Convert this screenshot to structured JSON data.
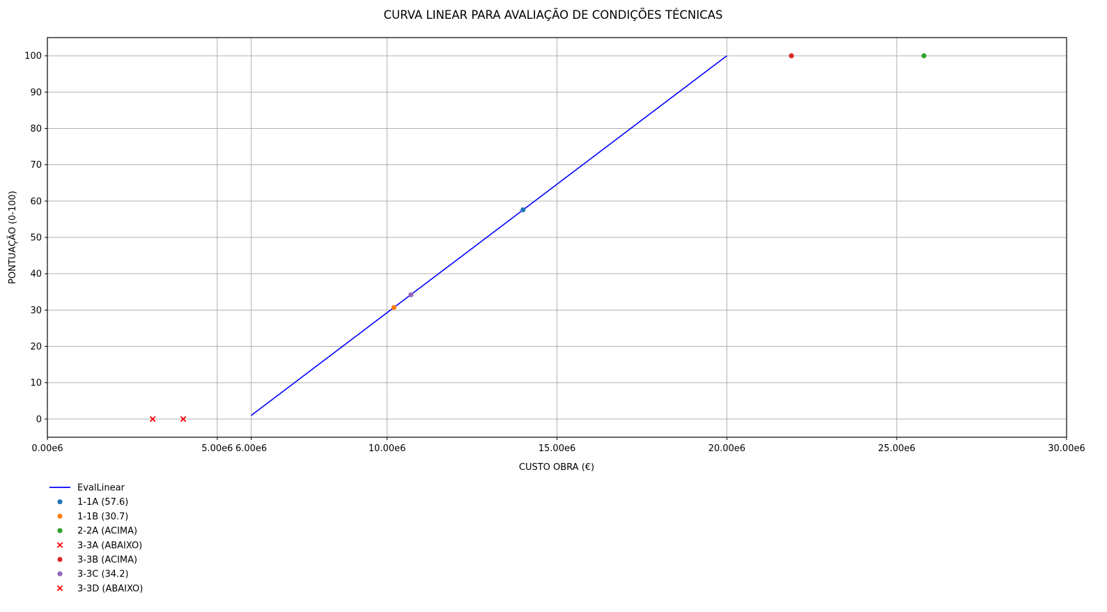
{
  "chart_data": {
    "type": "scatter",
    "title": "CURVA LINEAR PARA AVALIAÇÃO DE CONDIÇÕES TÉCNICAS",
    "xlabel": "CUSTO OBRA (€)",
    "ylabel": "PONTUAÇÃO (0-100)",
    "xlim": [
      0,
      30000000
    ],
    "ylim": [
      -5,
      105
    ],
    "grid": true,
    "legend_position": "below-left",
    "x_ticks": [
      {
        "value": 0,
        "label": "0.00e6",
        "color": "#000000"
      },
      {
        "value": 5000000,
        "label": "5.00e6",
        "color": "#000000"
      },
      {
        "value": 6000000,
        "label": "6.00e6",
        "color": "#ff0000"
      },
      {
        "value": 10000000,
        "label": "10.00e6",
        "color": "#000000"
      },
      {
        "value": 15000000,
        "label": "15.00e6",
        "color": "#000000"
      },
      {
        "value": 20000000,
        "label": "20.00e6",
        "color": "#ff0000"
      },
      {
        "value": 25000000,
        "label": "25.00e6",
        "color": "#000000"
      },
      {
        "value": 30000000,
        "label": "30.00e6",
        "color": "#000000"
      }
    ],
    "y_ticks": [
      {
        "value": 0,
        "label": "0"
      },
      {
        "value": 10,
        "label": "10"
      },
      {
        "value": 20,
        "label": "20"
      },
      {
        "value": 30,
        "label": "30"
      },
      {
        "value": 40,
        "label": "40"
      },
      {
        "value": 50,
        "label": "50"
      },
      {
        "value": 60,
        "label": "60"
      },
      {
        "value": 70,
        "label": "70"
      },
      {
        "value": 80,
        "label": "80"
      },
      {
        "value": 90,
        "label": "90"
      },
      {
        "value": 100,
        "label": "100"
      }
    ],
    "series": [
      {
        "name": "EvalLinear",
        "kind": "line",
        "color": "#0000ff",
        "x": [
          6000000,
          20000000
        ],
        "y": [
          1,
          100
        ]
      },
      {
        "name": "1-1A (57.6)",
        "kind": "point",
        "marker": "circle",
        "color": "#1f77b4",
        "x": [
          14000000
        ],
        "y": [
          57.6
        ]
      },
      {
        "name": "1-1B (30.7)",
        "kind": "point",
        "marker": "circle",
        "color": "#ff7f0e",
        "x": [
          10200000
        ],
        "y": [
          30.7
        ]
      },
      {
        "name": "2-2A (ACIMA)",
        "kind": "point",
        "marker": "circle",
        "color": "#2ca02c",
        "x": [
          25800000
        ],
        "y": [
          100
        ]
      },
      {
        "name": "3-3A (ABAIXO)",
        "kind": "point",
        "marker": "x",
        "color": "#ff0000",
        "x": [
          3100000
        ],
        "y": [
          0
        ]
      },
      {
        "name": "3-3B (ACIMA)",
        "kind": "point",
        "marker": "circle",
        "color": "#d62728",
        "x": [
          21900000
        ],
        "y": [
          100
        ]
      },
      {
        "name": "3-3C (34.2)",
        "kind": "point",
        "marker": "circle",
        "color": "#9467bd",
        "x": [
          10700000
        ],
        "y": [
          34.2
        ]
      },
      {
        "name": "3-3D (ABAIXO)",
        "kind": "point",
        "marker": "x",
        "color": "#ff0000",
        "x": [
          4000000
        ],
        "y": [
          0
        ]
      }
    ]
  }
}
